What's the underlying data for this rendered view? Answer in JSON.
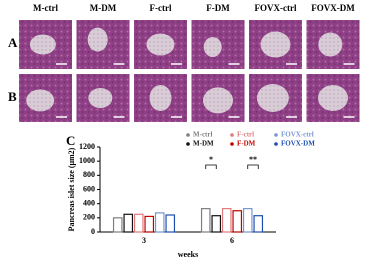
{
  "figure": {
    "panel_a": "A",
    "panel_b": "B",
    "panel_c": "C",
    "columns": [
      "M-ctrl",
      "M-DM",
      "F-ctrl",
      "F-DM",
      "FOVX-ctrl",
      "FOVX-DM"
    ]
  },
  "chart_data": {
    "type": "bar",
    "categories": [
      "3",
      "6"
    ],
    "x_label": "weeks",
    "y_label": "Pancreas islet size (μm2)",
    "ylim": [
      0,
      1200
    ],
    "yticks": [
      0,
      200,
      400,
      600,
      800,
      1000,
      1200
    ],
    "series": [
      {
        "name": "M-ctrl",
        "color": "#7f7f7f",
        "values": [
          200,
          330
        ]
      },
      {
        "name": "M-DM",
        "color": "#111111",
        "values": [
          250,
          230
        ]
      },
      {
        "name": "F-ctrl",
        "color": "#e07a7a",
        "values": [
          250,
          330
        ]
      },
      {
        "name": "F-DM",
        "color": "#c00000",
        "values": [
          220,
          300
        ]
      },
      {
        "name": "FOVX-ctrl",
        "color": "#7896d2",
        "values": [
          270,
          330
        ]
      },
      {
        "name": "FOVX-DM",
        "color": "#1f4fae",
        "values": [
          240,
          230
        ]
      }
    ],
    "annotations": [
      {
        "text": "*"
      },
      {
        "text": "**"
      }
    ]
  }
}
